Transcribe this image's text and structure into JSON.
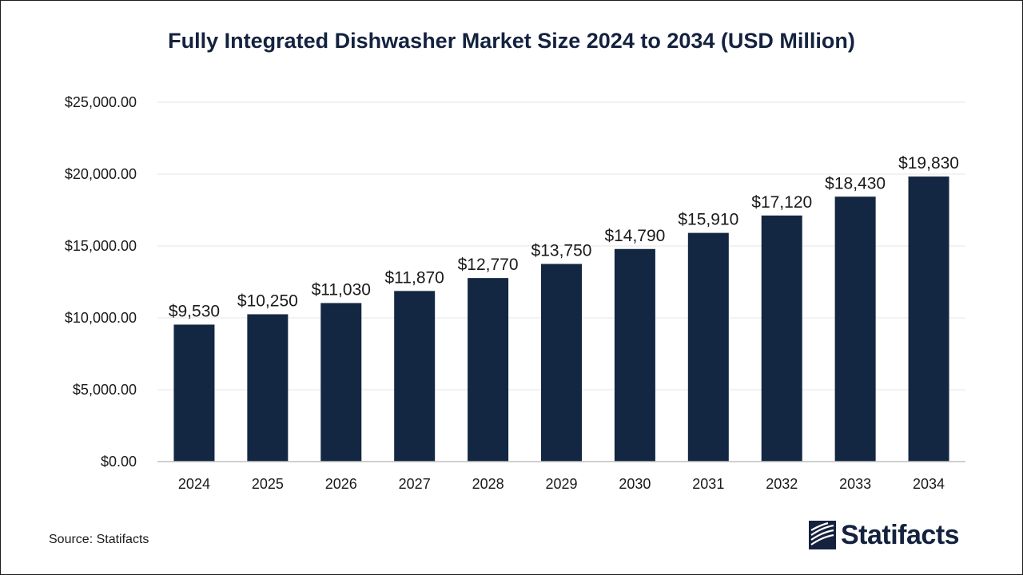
{
  "chart_data": {
    "type": "bar",
    "title": "Fully Integrated Dishwasher Market Size 2024 to 2034 (USD Million)",
    "categories": [
      "2024",
      "2025",
      "2026",
      "2027",
      "2028",
      "2029",
      "2030",
      "2031",
      "2032",
      "2033",
      "2034"
    ],
    "values": [
      9530,
      10250,
      11030,
      11870,
      12770,
      13750,
      14790,
      15910,
      17120,
      18430,
      19830
    ],
    "value_labels": [
      "$9,530",
      "$10,250",
      "$11,030",
      "$11,870",
      "$12,770",
      "$13,750",
      "$14,790",
      "$15,910",
      "$17,120",
      "$18,430",
      "$19,830"
    ],
    "yticks": [
      0,
      5000,
      10000,
      15000,
      20000,
      25000
    ],
    "ytick_labels": [
      "$0.00",
      "$5,000.00",
      "$10,000.00",
      "$15,000.00",
      "$20,000.00",
      "$25,000.00"
    ],
    "ylim": [
      0,
      25000
    ],
    "xlabel": "",
    "ylabel": "",
    "grid": true,
    "bar_color": "#132742"
  },
  "source": "Source: Statifacts",
  "brand": {
    "name": "Statifacts",
    "logo_icon": "statifacts-logo-icon"
  }
}
